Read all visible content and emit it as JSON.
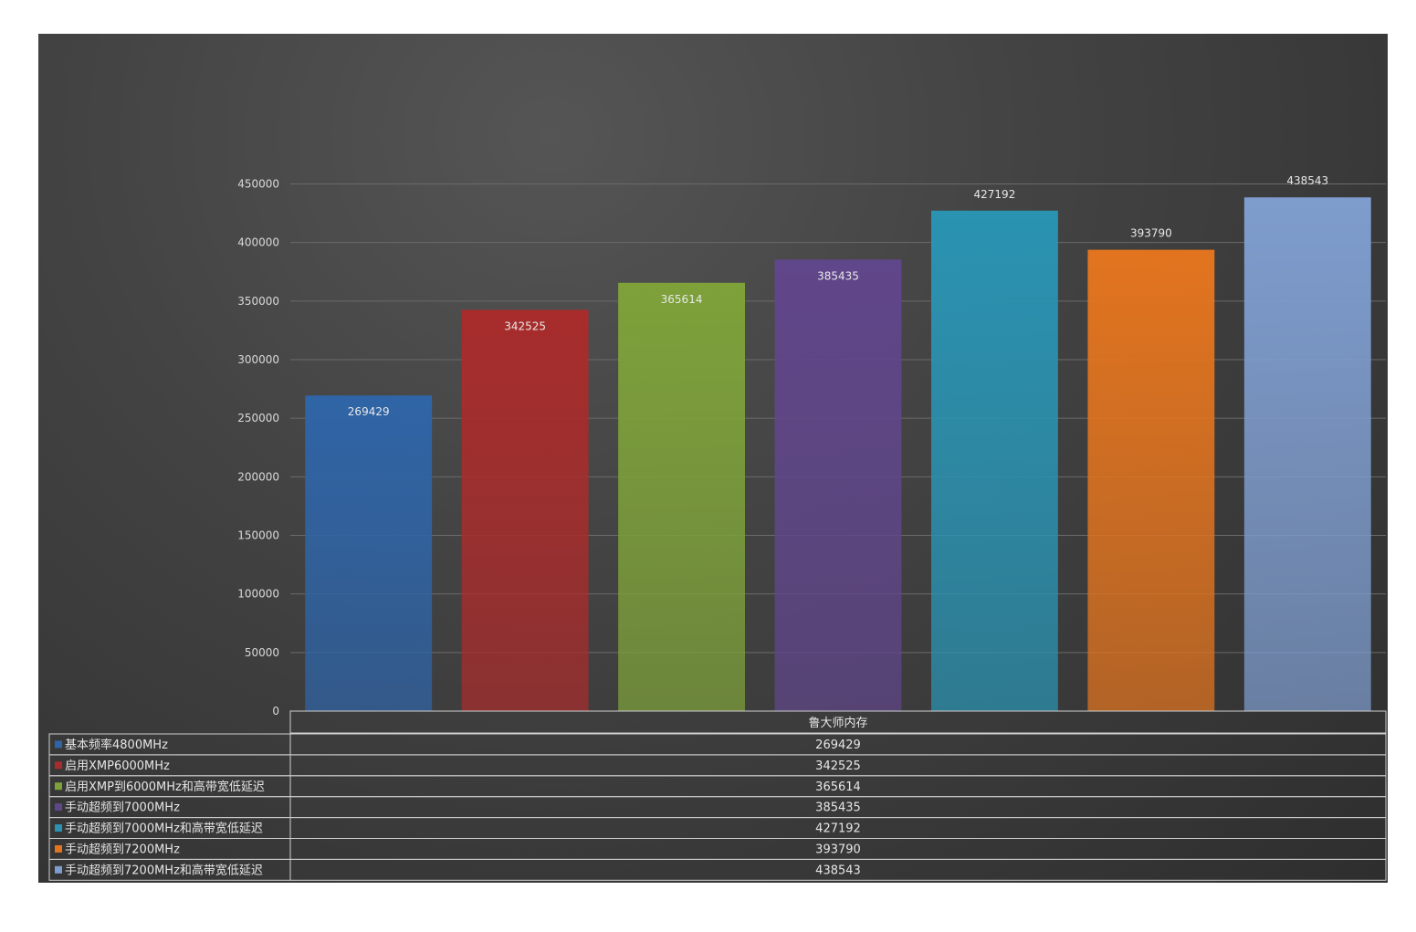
{
  "chart_data": {
    "type": "bar",
    "categories": [
      "鲁大师内存"
    ],
    "series": [
      {
        "name": "基本频率4800MHz",
        "values": [
          269429
        ],
        "color": "#2f64a6"
      },
      {
        "name": "启用XMP6000MHz",
        "values": [
          342525
        ],
        "color": "#a82c2c"
      },
      {
        "name": "启用XMP到6000MHz和高带宽低延迟",
        "values": [
          365614
        ],
        "color": "#7ea13a"
      },
      {
        "name": "手动超频到7000MHz",
        "values": [
          385435
        ],
        "color": "#60468a"
      },
      {
        "name": "手动超频到7000MHz和高带宽低延迟",
        "values": [
          427192
        ],
        "color": "#2a93b2"
      },
      {
        "name": "手动超频到7200MHz",
        "values": [
          393790
        ],
        "color": "#e2741f"
      },
      {
        "name": "手动超频到7200MHz和高带宽低延迟",
        "values": [
          438543
        ],
        "color": "#7e9ccd"
      }
    ],
    "y_ticks": [
      "0",
      "50000",
      "100000",
      "150000",
      "200000",
      "250000",
      "300000",
      "350000",
      "400000",
      "450000"
    ],
    "ylim": [
      0,
      450000
    ],
    "grid": true,
    "legend": "data-table",
    "data_table": {
      "header": "鲁大师内存",
      "rows": [
        {
          "label": "基本频率4800MHz",
          "value": "269429"
        },
        {
          "label": "启用XMP6000MHz",
          "value": "342525"
        },
        {
          "label": "启用XMP到6000MHz和高带宽低延迟",
          "value": "365614"
        },
        {
          "label": "手动超频到7000MHz",
          "value": "385435"
        },
        {
          "label": "手动超频到7000MHz和高带宽低延迟",
          "value": "427192"
        },
        {
          "label": "手动超频到7200MHz",
          "value": "393790"
        },
        {
          "label": "手动超频到7200MHz和高带宽低延迟",
          "value": "438543"
        }
      ]
    }
  }
}
